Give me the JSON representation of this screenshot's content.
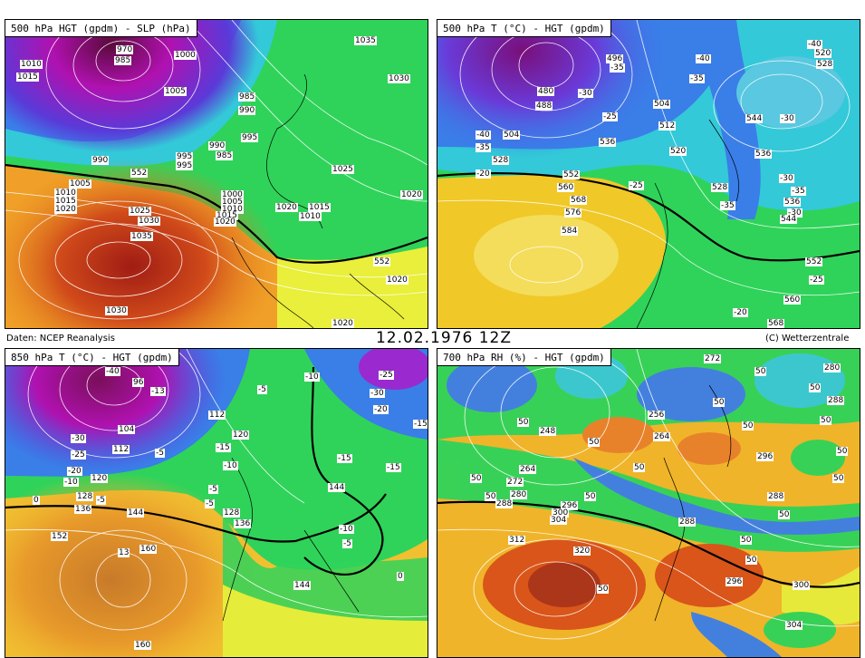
{
  "header": {
    "source_label": "Daten: NCEP Reanalysis",
    "date": "12.02.1976  12Z",
    "credit": "(C) Wetterzentrale"
  },
  "panels": [
    {
      "title": "500 hPa HGT (gpdm) - SLP (hPa)",
      "labels": [
        "1035",
        "1010",
        "1015",
        "970",
        "985",
        "1000",
        "1005",
        "985",
        "990",
        "995",
        "1030",
        "990",
        "995",
        "995",
        "990",
        "985",
        "552",
        "1025",
        "1005",
        "1010",
        "1015",
        "1020",
        "1025",
        "1030",
        "1000",
        "1005",
        "1010",
        "1015",
        "1020",
        "1020",
        "1015",
        "1010",
        "1020",
        "1035",
        "1030",
        "552",
        "1020",
        "1020"
      ]
    },
    {
      "title": "500 hPa T (°C) - HGT (gpdm)",
      "labels": [
        "496",
        "-35",
        "-40",
        "-40",
        "520",
        "528",
        "480",
        "-30",
        "488",
        "504",
        "-35",
        "-25",
        "504",
        "512",
        "536",
        "-40",
        "-35",
        "528",
        "520",
        "544",
        "536",
        "-30",
        "552",
        "-20",
        "560",
        "-25",
        "528",
        "568",
        "-30",
        "576",
        "-35",
        "-35",
        "536",
        "-30",
        "544",
        "584",
        "552",
        "-25",
        "560",
        "-20",
        "568"
      ]
    },
    {
      "title": "850 hPa T (°C) - HGT (gpdm)",
      "labels": [
        "-40",
        "96",
        "-13",
        "-10",
        "-25",
        "-30",
        "112",
        "-5",
        "-20",
        "104",
        "-15",
        "-30",
        "112",
        "-5",
        "-25",
        "120",
        "-10",
        "-15",
        "-15",
        "-20",
        "120",
        "-5",
        "-10",
        "144",
        "0",
        "128",
        "-15",
        "-5",
        "-5",
        "136",
        "144",
        "128",
        "136",
        "-10",
        "152",
        "160",
        "13",
        "-5",
        "0",
        "144",
        "160"
      ]
    },
    {
      "title": "700 hPa RH (%) - HGT (gpdm)",
      "labels": [
        "272",
        "280",
        "50",
        "50",
        "288",
        "50",
        "248",
        "256",
        "50",
        "50",
        "264",
        "50",
        "50",
        "50",
        "264",
        "296",
        "50",
        "50",
        "272",
        "50",
        "280",
        "50",
        "288",
        "296",
        "288",
        "50",
        "300",
        "304",
        "288",
        "312",
        "50",
        "320",
        "50",
        "50",
        "296",
        "300",
        "50",
        "304"
      ]
    }
  ]
}
